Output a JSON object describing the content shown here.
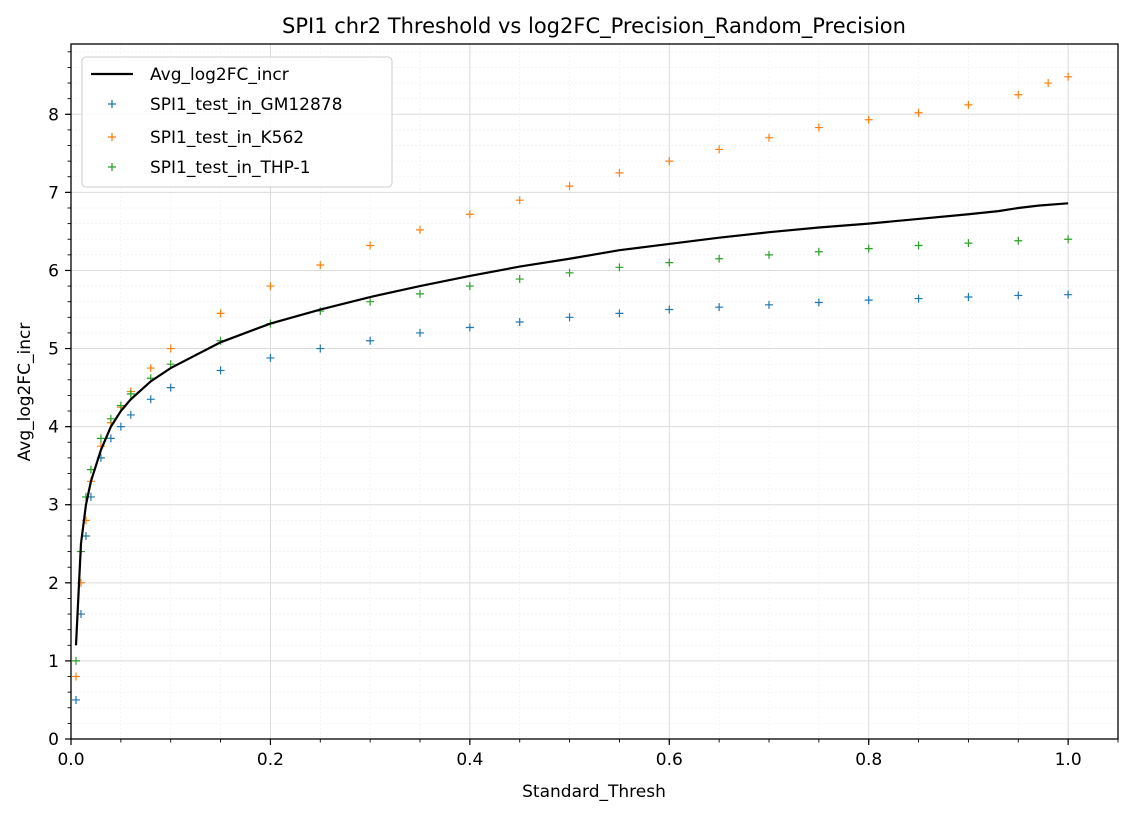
{
  "chart_data": {
    "type": "scatter",
    "title": "SPI1 chr2 Threshold vs log2FC_Precision_Random_Precision",
    "xlabel": "Standard_Thresh",
    "ylabel": "Avg_log2FC_incr",
    "xlim": [
      0.0,
      1.05
    ],
    "ylim": [
      0,
      8.9
    ],
    "xticks": [
      0.0,
      0.2,
      0.4,
      0.6,
      0.8,
      1.0
    ],
    "xtick_labels": [
      "0.0",
      "0.2",
      "0.4",
      "0.6",
      "0.8",
      "1.0"
    ],
    "yticks": [
      0,
      1,
      2,
      3,
      4,
      5,
      6,
      7,
      8
    ],
    "ytick_labels": [
      "0",
      "1",
      "2",
      "3",
      "4",
      "5",
      "6",
      "7",
      "8"
    ],
    "grid": true,
    "minor_grid": true,
    "legend_position": "top-left",
    "legend_entries": [
      "Avg_log2FC_incr",
      "SPI1_test_in_GM12878",
      "SPI1_test_in_K562",
      "SPI1_test_in_THP-1"
    ],
    "series": [
      {
        "name": "Avg_log2FC_incr",
        "kind": "line",
        "color": "#000000",
        "x": [
          0.005,
          0.01,
          0.015,
          0.02,
          0.03,
          0.04,
          0.05,
          0.06,
          0.08,
          0.1,
          0.15,
          0.2,
          0.25,
          0.3,
          0.35,
          0.4,
          0.45,
          0.5,
          0.55,
          0.6,
          0.65,
          0.7,
          0.75,
          0.8,
          0.85,
          0.9,
          0.93,
          0.95,
          0.97,
          0.99,
          1.0
        ],
        "y": [
          1.2,
          2.5,
          3.0,
          3.3,
          3.7,
          4.0,
          4.2,
          4.35,
          4.58,
          4.75,
          5.08,
          5.32,
          5.5,
          5.66,
          5.8,
          5.93,
          6.05,
          6.15,
          6.26,
          6.34,
          6.42,
          6.49,
          6.55,
          6.6,
          6.66,
          6.72,
          6.76,
          6.8,
          6.83,
          6.85,
          6.86
        ]
      },
      {
        "name": "SPI1_test_in_GM12878",
        "kind": "scatter",
        "marker": "+",
        "color": "#1f77b4",
        "x": [
          0.005,
          0.01,
          0.015,
          0.02,
          0.03,
          0.04,
          0.05,
          0.06,
          0.08,
          0.1,
          0.15,
          0.2,
          0.25,
          0.3,
          0.35,
          0.4,
          0.45,
          0.5,
          0.55,
          0.6,
          0.65,
          0.7,
          0.75,
          0.8,
          0.85,
          0.9,
          0.95,
          1.0
        ],
        "y": [
          0.5,
          1.6,
          2.6,
          3.1,
          3.6,
          3.85,
          4.0,
          4.15,
          4.35,
          4.5,
          4.72,
          4.88,
          5.0,
          5.1,
          5.2,
          5.27,
          5.34,
          5.4,
          5.45,
          5.5,
          5.53,
          5.56,
          5.59,
          5.62,
          5.64,
          5.66,
          5.68,
          5.69
        ]
      },
      {
        "name": "SPI1_test_in_K562",
        "kind": "scatter",
        "marker": "+",
        "color": "#ff7f0e",
        "x": [
          0.005,
          0.01,
          0.015,
          0.02,
          0.03,
          0.04,
          0.05,
          0.06,
          0.08,
          0.1,
          0.15,
          0.2,
          0.25,
          0.3,
          0.35,
          0.4,
          0.45,
          0.5,
          0.55,
          0.6,
          0.65,
          0.7,
          0.75,
          0.8,
          0.85,
          0.9,
          0.95,
          0.98,
          1.0
        ],
        "y": [
          0.8,
          2.0,
          2.8,
          3.3,
          3.75,
          4.05,
          4.25,
          4.45,
          4.75,
          5.0,
          5.45,
          5.8,
          6.07,
          6.32,
          6.52,
          6.72,
          6.9,
          7.08,
          7.25,
          7.4,
          7.55,
          7.7,
          7.83,
          7.93,
          8.02,
          8.12,
          8.25,
          8.4,
          8.48
        ]
      },
      {
        "name": "SPI1_test_in_THP-1",
        "kind": "scatter",
        "marker": "+",
        "color": "#2ca02c",
        "x": [
          0.005,
          0.01,
          0.015,
          0.02,
          0.03,
          0.04,
          0.05,
          0.06,
          0.08,
          0.1,
          0.15,
          0.2,
          0.25,
          0.3,
          0.35,
          0.4,
          0.45,
          0.5,
          0.55,
          0.6,
          0.65,
          0.7,
          0.75,
          0.8,
          0.85,
          0.9,
          0.95,
          1.0
        ],
        "y": [
          1.0,
          2.4,
          3.1,
          3.45,
          3.85,
          4.1,
          4.27,
          4.42,
          4.62,
          4.8,
          5.1,
          5.32,
          5.48,
          5.6,
          5.7,
          5.8,
          5.89,
          5.97,
          6.04,
          6.1,
          6.15,
          6.2,
          6.24,
          6.28,
          6.32,
          6.35,
          6.38,
          6.4
        ]
      }
    ]
  }
}
